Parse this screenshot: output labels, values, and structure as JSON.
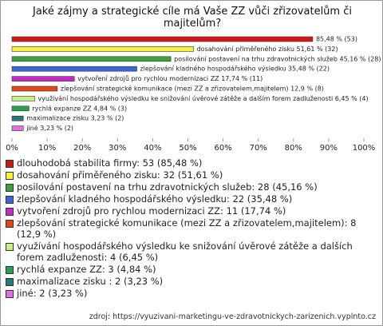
{
  "chart_data": {
    "type": "bar",
    "orientation": "horizontal",
    "title": "Jaké zájmy a strategické cíle má Vaše ZZ vůči zřizovatelům či majitelům?",
    "series": [
      {
        "values": [
          85.48,
          51.61,
          45.16,
          35.48,
          17.74,
          12.9,
          6.45,
          4.84,
          3.23,
          3.23
        ],
        "value_labels": [
          "85,48 % (53)",
          "dosahování přiměřeného zisku 51,61 % (32)",
          "posilování postavení na trhu zdravotnických služeb 45,16 % (28)",
          "zlepšování kladného hospodářského výsledku 35,48 % (22)",
          "vytvoření zdrojů pro rychlou modernizaci ZZ 17,74 % (11)",
          "zlepšování strategické komunikace (mezi ZZ a zřizovatelem,majitelem) 12,9 % (8)",
          "využívání hospodářského výsledku ke snižování úvěrové zátěže a dalším forem zadluženosti 6,45 % (4)",
          "rychlá expanze ZZ 4,84 % (3)",
          "maximalizace zisku  3,23 % (2)",
          "jiné 3,23 % (2)"
        ],
        "colors": [
          "#d01818",
          "#f8f040",
          "#3ca03c",
          "#3c64d8",
          "#c828c8",
          "#e04818",
          "#c8f088",
          "#28a050",
          "#287878",
          "#e070e0"
        ]
      }
    ],
    "legend": [
      "dlouhodobá stabilita firmy: 53 (85,48 %)",
      "dosahování přiměřeného zisku: 32 (51,61 %)",
      "posilování postavení na trhu zdravotnických služeb: 28 (45,16 %)",
      "zlepšování kladného hospodářského výsledku: 22 (35,48 %)",
      "vytvoření zdrojů pro rychlou modernizaci ZZ: 11 (17,74 %)",
      "zlepšování strategické komunikace (mezi ZZ a zřizovatelem,majitelem): 8 (12,9 %)",
      "využívání hospodářského výsledku ke snižování úvěrové zátěže a dalších forem zadluženosti: 4 (6,45 %)",
      "rychlá expanze ZZ: 3 (4,84 %)",
      "maximalizace zisku : 2 (3,23 %)",
      "jiné: 2 (3,23 %)"
    ],
    "xlim": [
      0,
      100
    ],
    "xticks": [
      {
        "value": 0,
        "label": "0%"
      },
      {
        "value": 10,
        "label": "10%"
      },
      {
        "value": 20,
        "label": "20%"
      },
      {
        "value": 30,
        "label": "30%"
      },
      {
        "value": 40,
        "label": "40%"
      },
      {
        "value": 50,
        "label": "50%"
      },
      {
        "value": 60,
        "label": "60%"
      },
      {
        "value": 70,
        "label": "70%"
      },
      {
        "value": 80,
        "label": "80%"
      },
      {
        "value": 90,
        "label": "90%"
      },
      {
        "value": 100,
        "label": "100%"
      }
    ],
    "source": "zdroj: https://vyuzivani-marketingu-ve-zdravotnickych-zarizenich.vyplnto.cz"
  }
}
